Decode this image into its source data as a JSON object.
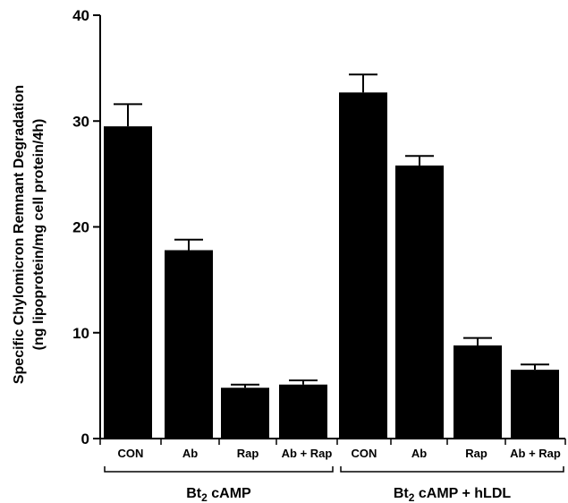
{
  "chart_data": {
    "type": "bar",
    "title": "",
    "xlabel": "",
    "ylabel_lines": [
      "Specific Chylomicron Remnant Degradation",
      "(ng lipoprotein/mg cell protein/4h)"
    ],
    "ylim": [
      0,
      40
    ],
    "yticks": [
      0,
      10,
      20,
      30,
      40
    ],
    "grid": false,
    "legend": "none",
    "bar_color": "#000000",
    "groups": [
      {
        "label_main": "Bt",
        "label_sub": "2",
        "label_rest": " cAMP",
        "categories": [
          "CON",
          "Ab",
          "Rap",
          "Ab + Rap"
        ],
        "values": [
          29.5,
          17.8,
          4.8,
          5.1
        ],
        "errors": [
          2.1,
          1.0,
          0.3,
          0.4
        ]
      },
      {
        "label_main": "Bt",
        "label_sub": "2",
        "label_rest": " cAMP + hLDL",
        "categories": [
          "CON",
          "Ab",
          "Rap",
          "Ab + Rap"
        ],
        "values": [
          32.7,
          25.8,
          8.8,
          6.5
        ],
        "errors": [
          1.7,
          0.9,
          0.7,
          0.5
        ]
      }
    ]
  }
}
